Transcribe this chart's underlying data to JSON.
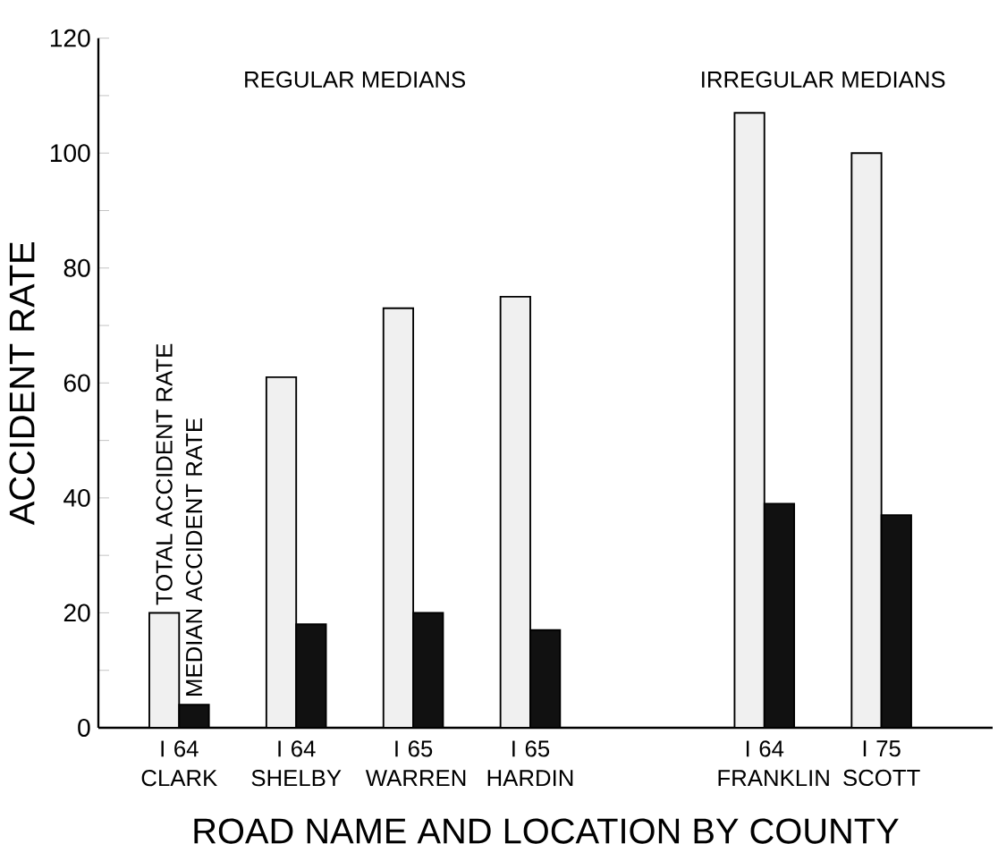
{
  "chart_data": {
    "type": "bar",
    "xlabel": "ROAD NAME AND LOCATION BY COUNTY",
    "ylabel": "ACCIDENT RATE",
    "categories": [
      "I 64 CLARK",
      "I 64 SHELBY",
      "I 65 WARREN",
      "I 65 HARDIN",
      null,
      "I 64 FRANKLIN",
      "I 75 SCOTT"
    ],
    "series": [
      {
        "name": "TOTAL ACCIDENT RATE",
        "color": "#f0f0f0",
        "values": [
          20,
          61,
          73,
          75,
          null,
          107,
          100
        ]
      },
      {
        "name": "MEDIAN ACCIDENT RATE",
        "color": "#111111",
        "values": [
          4,
          18,
          20,
          17,
          null,
          39,
          37
        ]
      }
    ],
    "ylim": [
      0,
      120
    ],
    "yticks": [
      0,
      {
        "value": 10,
        "label": null
      },
      20,
      {
        "value": 30,
        "label": null
      },
      40,
      {
        "value": 50,
        "label": null
      },
      60,
      {
        "value": 70,
        "label": null
      },
      80,
      {
        "value": 90,
        "label": null
      },
      100,
      {
        "value": 110,
        "label": null
      },
      120
    ],
    "annotations": [
      "REGULAR MEDIANS",
      "IRREGULAR MEDIANS"
    ],
    "grid": false,
    "legend": false
  }
}
